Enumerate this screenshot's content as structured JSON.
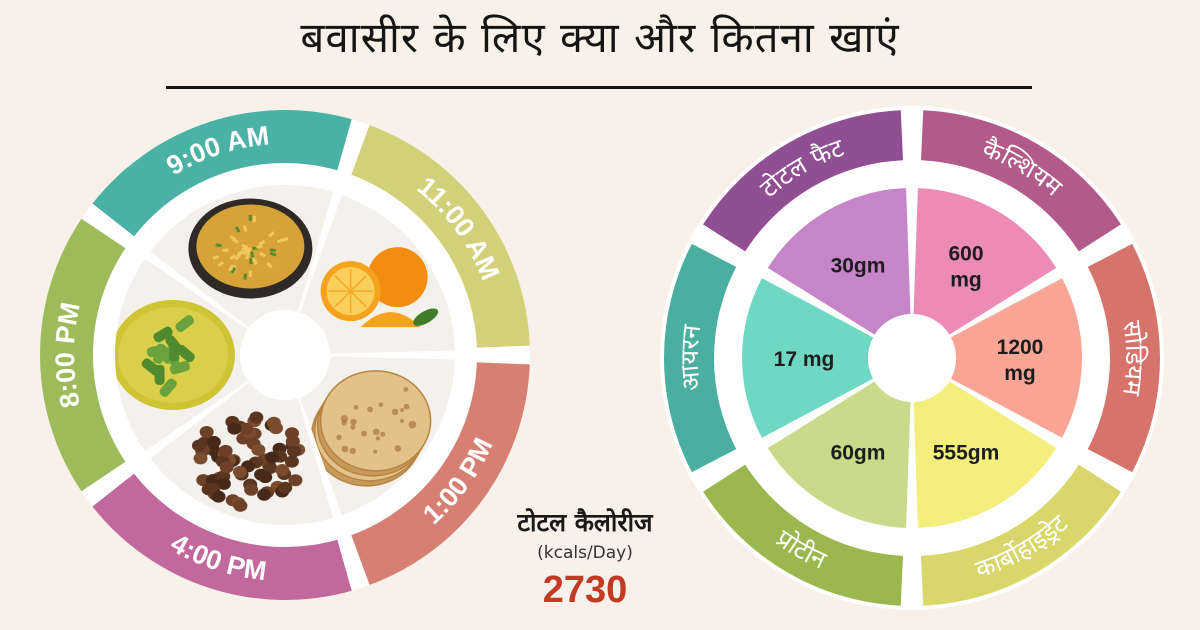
{
  "title": "बवासीर के लिए क्या और कितना खाएं",
  "meal_schedule": [
    {
      "time": "9:00 AM",
      "food": "poha-bowl",
      "color": "#4ab1a5"
    },
    {
      "time": "11:00 AM",
      "food": "orange-fruit",
      "color": "#d3d07a"
    },
    {
      "time": "1:00 PM",
      "food": "chapati-stack",
      "color": "#d67f73"
    },
    {
      "time": "4:00 PM",
      "food": "black-chana",
      "color": "#c1689c"
    },
    {
      "time": "8:00 PM",
      "food": "bhindi-kadhi",
      "color": "#9dbb5a"
    }
  ],
  "nutrients": [
    {
      "name": "टोटल फैट",
      "value": "30gm",
      "ring_color": "#8f4f92",
      "fill": "#c585c8"
    },
    {
      "name": "कैल्शियम",
      "value": "600 mg",
      "ring_color": "#b25b8a",
      "fill": "#ec8cb6"
    },
    {
      "name": "सोडियम",
      "value": "1200 mg",
      "ring_color": "#d6746b",
      "fill": "#f9a596"
    },
    {
      "name": "कार्बोहाइड्रेट",
      "value": "555gm",
      "ring_color": "#d9d66a",
      "fill": "#f4ee7d"
    },
    {
      "name": "प्रोटीन",
      "value": "60gm",
      "ring_color": "#9ab84e",
      "fill": "#c9db8a"
    },
    {
      "name": "आयरन",
      "value": "17 mg",
      "ring_color": "#4aaea1",
      "fill": "#6fd8c4"
    }
  ],
  "total_calories": {
    "label": "टोटल कैलोरीज",
    "unit": "(kcals/Day)",
    "value": "2730"
  }
}
